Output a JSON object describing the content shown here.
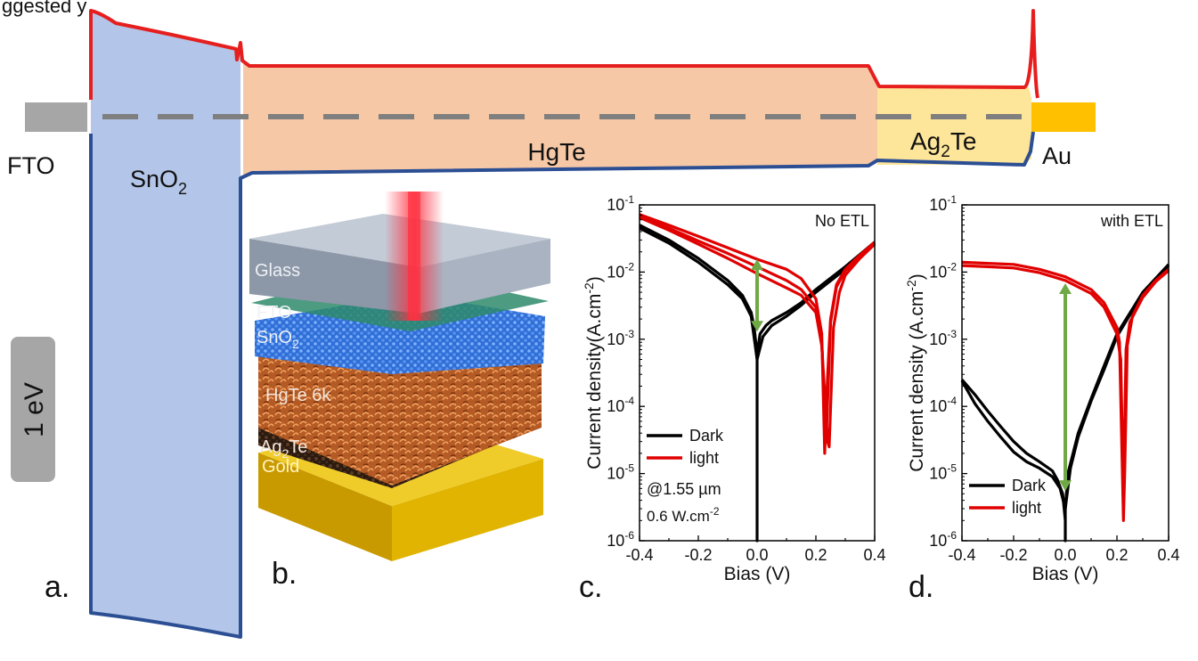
{
  "header_fragment": "ggested y",
  "panels": {
    "a": "a.",
    "b": "b.",
    "c": "c.",
    "d": "d."
  },
  "band_diagram": {
    "layers": [
      {
        "key": "fto",
        "base": "FTO",
        "sub": ""
      },
      {
        "key": "sno2",
        "base": "SnO",
        "sub": "2"
      },
      {
        "key": "hgte",
        "base": "HgTe",
        "sub": ""
      },
      {
        "key": "ag2te",
        "base": "Ag",
        "sub": "2",
        "tail": "Te"
      },
      {
        "key": "au",
        "base": "Au",
        "sub": ""
      }
    ],
    "scale_bar": "1 eV",
    "colors": {
      "conduction_band": "#e61e1e",
      "valence_band": "#2c4f94",
      "fermi_level": "#7f7f7f",
      "sno2_fill": "#b3c5e8",
      "hgte_fill": "#f6c8a6",
      "ag2te_fill": "#fde599",
      "fto_contact": "#a6a6a6",
      "au_contact": "#ffc000",
      "scale_bar_fill": "#a6a6a6"
    }
  },
  "device_stack": {
    "layers": [
      {
        "key": "glass",
        "text": "Glass"
      },
      {
        "key": "fto",
        "text": "FTO"
      },
      {
        "key": "sno2",
        "base": "SnO",
        "sub": "2"
      },
      {
        "key": "hgte",
        "text": "HgTe 6k"
      },
      {
        "key": "ag2te",
        "base": "Ag",
        "sub": "2",
        "tail": "Te"
      },
      {
        "key": "gold",
        "text": "Gold"
      }
    ],
    "colors": {
      "glass": "#8c97a8",
      "fto": "#2e8a6b",
      "sno2": "#3f7fe0",
      "hgte": "#b45a24",
      "ag2te": "#3a2418",
      "gold": "#e0b400",
      "beam": "#ff3040"
    }
  },
  "chart_data": [
    {
      "type": "line",
      "panel": "c.",
      "annotation": "No ETL",
      "xlabel": "Bias (V)",
      "ylabel": "Current density(A.cm",
      "ylabel_sup": "-2",
      "ylabel_tail": ")",
      "xlim": [
        -0.4,
        0.4
      ],
      "ylim": [
        1e-06,
        0.1
      ],
      "yscale": "log",
      "xticks": [
        "-0.4",
        "-0.2",
        "0.0",
        "0.2",
        "0.4"
      ],
      "yticks_exp": [
        "-6",
        "-5",
        "-4",
        "-3",
        "-2",
        "-1"
      ],
      "legend": {
        "placement": "bottom-left",
        "entries": [
          {
            "name": "Dark",
            "color": "#000000"
          },
          {
            "name": "light",
            "color": "#e00000"
          }
        ]
      },
      "notes": [
        "@1.55 µm",
        "0.6 W.cm"
      ],
      "note_sup": "-2",
      "arrow": {
        "x": 0.0,
        "y_from": 0.0013,
        "y_to": 0.0155,
        "color": "#70a845"
      },
      "series": [
        {
          "name": "Dark",
          "color": "#000000",
          "x": [
            -0.4,
            -0.3,
            -0.2,
            -0.1,
            -0.05,
            -0.02,
            -0.01,
            0.0,
            0.0,
            0.0,
            0.01,
            0.03,
            0.05,
            0.1,
            0.15,
            0.2,
            0.3,
            0.4
          ],
          "y": [
            0.05,
            0.03,
            0.016,
            0.0075,
            0.0045,
            0.0025,
            0.0015,
            0.0006,
            1e-06,
            0.0006,
            0.0012,
            0.0016,
            0.0019,
            0.0025,
            0.0035,
            0.0055,
            0.012,
            0.028
          ]
        },
        {
          "name": "Dark",
          "color": "#000000",
          "x": [
            -0.4,
            -0.3,
            -0.2,
            -0.1,
            -0.05,
            -0.02,
            0.0,
            0.02,
            0.05,
            0.1,
            0.15,
            0.2,
            0.3,
            0.4
          ],
          "y": [
            0.045,
            0.027,
            0.014,
            0.0065,
            0.004,
            0.0022,
            0.0005,
            0.0011,
            0.0016,
            0.0022,
            0.0032,
            0.005,
            0.011,
            0.026
          ]
        },
        {
          "name": "light",
          "color": "#e00000",
          "x": [
            -0.4,
            -0.3,
            -0.2,
            -0.1,
            0.0,
            0.1,
            0.15,
            0.2,
            0.22,
            0.23,
            0.24,
            0.25,
            0.27,
            0.3,
            0.35,
            0.4
          ],
          "y": [
            0.072,
            0.05,
            0.034,
            0.023,
            0.0155,
            0.011,
            0.008,
            0.004,
            0.0012,
            2e-05,
            0.0003,
            0.002,
            0.0065,
            0.011,
            0.018,
            0.028
          ]
        },
        {
          "name": "light",
          "color": "#e00000",
          "x": [
            -0.4,
            -0.3,
            -0.2,
            -0.1,
            0.0,
            0.1,
            0.15,
            0.2,
            0.22,
            0.235,
            0.25,
            0.27,
            0.3,
            0.35,
            0.4
          ],
          "y": [
            0.068,
            0.045,
            0.029,
            0.019,
            0.012,
            0.0075,
            0.0055,
            0.003,
            0.0009,
            3e-05,
            0.0018,
            0.006,
            0.0105,
            0.017,
            0.027
          ]
        },
        {
          "name": "light",
          "color": "#e00000",
          "x": [
            -0.4,
            -0.3,
            -0.2,
            -0.1,
            0.0,
            0.1,
            0.15,
            0.2,
            0.22,
            0.24,
            0.245,
            0.26,
            0.28,
            0.3,
            0.35,
            0.4
          ],
          "y": [
            0.065,
            0.042,
            0.026,
            0.016,
            0.0095,
            0.0058,
            0.0045,
            0.0025,
            0.0008,
            3e-05,
            2.5e-05,
            0.0015,
            0.005,
            0.009,
            0.016,
            0.026
          ]
        }
      ]
    },
    {
      "type": "line",
      "panel": "d.",
      "annotation": "with ETL",
      "xlabel": "Bias (V)",
      "ylabel": "Current density (A.cm",
      "ylabel_sup": "-2",
      "ylabel_tail": ")",
      "xlim": [
        -0.4,
        0.4
      ],
      "ylim": [
        1e-06,
        0.1
      ],
      "yscale": "log",
      "xticks": [
        "-0.4",
        "-0.2",
        "0.0",
        "0.2",
        "0.4"
      ],
      "yticks_exp": [
        "-6",
        "-5",
        "-4",
        "-3",
        "-2",
        "-1"
      ],
      "legend": {
        "placement": "bottom-left",
        "entries": [
          {
            "name": "Dark",
            "color": "#000000"
          },
          {
            "name": "light",
            "color": "#e00000"
          }
        ]
      },
      "arrow": {
        "x": 0.0,
        "y_from": 5.5e-06,
        "y_to": 0.0068,
        "color": "#70a845"
      },
      "series": [
        {
          "name": "Dark",
          "color": "#000000",
          "x": [
            -0.4,
            -0.35,
            -0.3,
            -0.25,
            -0.2,
            -0.15,
            -0.1,
            -0.05,
            -0.03,
            -0.01,
            0.0,
            0.0,
            0.0,
            0.01,
            0.05,
            0.1,
            0.15,
            0.2,
            0.3,
            0.4
          ],
          "y": [
            0.00025,
            0.00015,
            8.5e-05,
            5e-05,
            3e-05,
            2e-05,
            1.5e-05,
            1.1e-05,
            8e-06,
            5e-06,
            2e-06,
            1e-06,
            3e-06,
            1e-05,
            4e-05,
            0.00013,
            0.0004,
            0.0012,
            0.005,
            0.013
          ]
        },
        {
          "name": "Dark",
          "color": "#000000",
          "x": [
            -0.4,
            -0.35,
            -0.3,
            -0.25,
            -0.2,
            -0.15,
            -0.1,
            -0.05,
            -0.02,
            0.0,
            0.02,
            0.05,
            0.1,
            0.15,
            0.2,
            0.3,
            0.4
          ],
          "y": [
            0.00024,
            0.00011,
            6e-05,
            3.5e-05,
            2.1e-05,
            1.5e-05,
            1.2e-05,
            9e-06,
            6e-06,
            3e-06,
            1.2e-05,
            3.5e-05,
            0.00012,
            0.00035,
            0.0011,
            0.0048,
            0.0125
          ]
        },
        {
          "name": "light",
          "color": "#e00000",
          "x": [
            -0.4,
            -0.3,
            -0.2,
            -0.1,
            0.0,
            0.1,
            0.15,
            0.2,
            0.21,
            0.225,
            0.23,
            0.24,
            0.26,
            0.3,
            0.35,
            0.4
          ],
          "y": [
            0.014,
            0.0135,
            0.013,
            0.011,
            0.0085,
            0.0055,
            0.0035,
            0.0015,
            0.0009,
            2e-06,
            1e-05,
            0.0008,
            0.0022,
            0.0045,
            0.0075,
            0.011
          ]
        },
        {
          "name": "light",
          "color": "#e00000",
          "x": [
            -0.4,
            -0.3,
            -0.2,
            -0.1,
            0.0,
            0.1,
            0.15,
            0.2,
            0.215,
            0.225,
            0.235,
            0.25,
            0.3,
            0.35,
            0.4
          ],
          "y": [
            0.0125,
            0.012,
            0.0115,
            0.0098,
            0.0075,
            0.0048,
            0.003,
            0.0012,
            0.0005,
            4e-06,
            0.0007,
            0.0018,
            0.0042,
            0.0072,
            0.0105
          ]
        }
      ]
    }
  ]
}
